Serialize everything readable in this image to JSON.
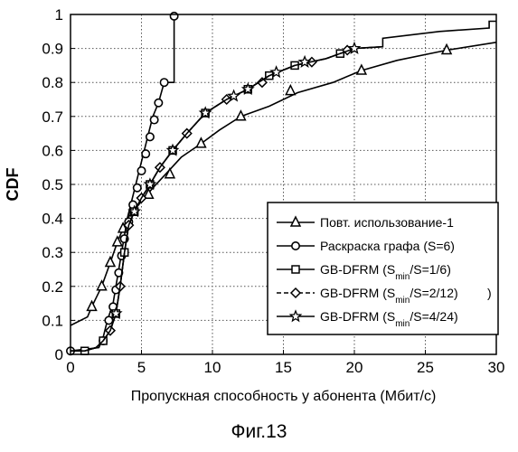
{
  "chart_data": {
    "type": "line",
    "title": "",
    "xlabel": "Пропускная способность у абонента (Мбит/с)",
    "ylabel": "CDF",
    "xlim": [
      0,
      30
    ],
    "ylim": [
      0,
      1
    ],
    "xticks": [
      "0",
      "5",
      "10",
      "15",
      "20",
      "25",
      "30"
    ],
    "yticks": [
      "0",
      "0.1",
      "0.2",
      "0.3",
      "0.4",
      "0.5",
      "0.6",
      "0.7",
      "0.8",
      "0.9",
      "1"
    ],
    "grid": "dotted",
    "legend_position": "bottom-right",
    "series": [
      {
        "name": "Повт. использование-1",
        "style": "solid",
        "marker": "triangle",
        "x": [
          0,
          1.2,
          1.5,
          2.2,
          2.8,
          3.3,
          3.7,
          4.0,
          4.4,
          5.0,
          5.8,
          6.7,
          7.8,
          9.2,
          10.5,
          12.0,
          14.0,
          16.0,
          18.5,
          20.5,
          23.0,
          26.5,
          30.0
        ],
        "y": [
          0.085,
          0.11,
          0.14,
          0.2,
          0.27,
          0.33,
          0.37,
          0.4,
          0.42,
          0.45,
          0.49,
          0.53,
          0.58,
          0.62,
          0.66,
          0.7,
          0.73,
          0.77,
          0.8,
          0.835,
          0.865,
          0.895,
          0.918
        ],
        "markers_x": [
          1.5,
          2.2,
          2.8,
          3.3,
          3.7,
          4.4,
          5.5,
          7.0,
          9.2,
          12.0,
          15.5,
          20.5,
          26.5
        ],
        "markers_y": [
          0.14,
          0.2,
          0.27,
          0.33,
          0.37,
          0.42,
          0.47,
          0.53,
          0.62,
          0.7,
          0.775,
          0.835,
          0.895
        ]
      },
      {
        "name": "Раскраска графа (S=6)",
        "style": "solid",
        "marker": "circle",
        "x": [
          0,
          2.0,
          2.3,
          2.6,
          3.0,
          3.2,
          3.4,
          3.6,
          3.8,
          4.0,
          4.3,
          4.6,
          4.9,
          5.2,
          5.5,
          5.8,
          6.2,
          6.6,
          7.1,
          7.3,
          7.3,
          7.6,
          7.6
        ],
        "y": [
          0.01,
          0.02,
          0.05,
          0.1,
          0.15,
          0.2,
          0.25,
          0.3,
          0.35,
          0.4,
          0.45,
          0.5,
          0.55,
          0.6,
          0.65,
          0.7,
          0.74,
          0.8,
          0.8,
          0.8,
          0.995,
          0.995,
          0.995
        ],
        "markers_x": [
          0,
          2.3,
          2.7,
          3.0,
          3.2,
          3.4,
          3.6,
          3.8,
          4.1,
          4.4,
          4.7,
          5.0,
          5.3,
          5.6,
          5.9,
          6.2,
          6.6,
          7.3
        ],
        "markers_y": [
          0.01,
          0.04,
          0.1,
          0.14,
          0.19,
          0.24,
          0.29,
          0.34,
          0.39,
          0.44,
          0.49,
          0.54,
          0.59,
          0.64,
          0.69,
          0.74,
          0.8,
          0.995
        ]
      },
      {
        "name": "GB-DFRM (S/S=1/6)",
        "style": "solid",
        "marker": "square",
        "x": [
          0,
          1.0,
          1.8,
          2.3,
          2.8,
          3.2,
          3.5,
          3.8,
          4.1,
          4.5,
          5.0,
          5.6,
          6.3,
          7.2,
          8.2,
          9.5,
          11.0,
          12.5,
          14.0,
          15.8,
          18.0,
          20.0,
          22.0,
          22.0,
          26.0,
          29.5,
          29.5,
          30.0
        ],
        "y": [
          0.01,
          0.01,
          0.02,
          0.04,
          0.07,
          0.12,
          0.2,
          0.3,
          0.38,
          0.42,
          0.46,
          0.5,
          0.55,
          0.6,
          0.65,
          0.71,
          0.75,
          0.78,
          0.82,
          0.85,
          0.87,
          0.9,
          0.905,
          0.93,
          0.95,
          0.96,
          0.98,
          0.98
        ],
        "markers_x": [
          1.0,
          2.3,
          3.2,
          3.8,
          4.5,
          5.6,
          7.2,
          9.5,
          12.5,
          14.0,
          15.8,
          19.0
        ],
        "markers_y": [
          0.01,
          0.04,
          0.12,
          0.3,
          0.42,
          0.5,
          0.6,
          0.71,
          0.78,
          0.82,
          0.85,
          0.885
        ]
      },
      {
        "name": "GB-DFRM (S/S=2/12)",
        "style": "dashed",
        "marker": "diamond",
        "x": [
          0,
          1.0,
          1.8,
          2.3,
          2.8,
          3.2,
          3.5,
          3.8,
          4.1,
          4.5,
          5.0,
          5.6,
          6.3,
          7.2,
          8.2,
          9.5,
          11.0,
          12.5,
          14.0,
          15.8,
          18.0,
          20.0,
          22.0
        ],
        "y": [
          0.01,
          0.01,
          0.02,
          0.04,
          0.07,
          0.12,
          0.2,
          0.3,
          0.38,
          0.42,
          0.46,
          0.5,
          0.55,
          0.6,
          0.65,
          0.71,
          0.75,
          0.78,
          0.82,
          0.85,
          0.87,
          0.9,
          0.905
        ],
        "markers_x": [
          2.8,
          3.5,
          4.1,
          5.0,
          6.3,
          8.2,
          11.0,
          13.5,
          17.0,
          19.5
        ],
        "markers_y": [
          0.07,
          0.2,
          0.38,
          0.46,
          0.55,
          0.65,
          0.75,
          0.8,
          0.86,
          0.895
        ]
      },
      {
        "name": "GB-DFRM (S/S=4/24)",
        "style": "solid",
        "marker": "star",
        "x": [
          0,
          1.0,
          1.8,
          2.3,
          2.8,
          3.2,
          3.5,
          3.8,
          4.1,
          4.5,
          5.0,
          5.6,
          6.3,
          7.2,
          8.2,
          9.5,
          11.0,
          12.5,
          14.0,
          15.8,
          18.0,
          20.0
        ],
        "y": [
          0.01,
          0.01,
          0.02,
          0.04,
          0.07,
          0.12,
          0.2,
          0.3,
          0.38,
          0.42,
          0.46,
          0.5,
          0.55,
          0.6,
          0.65,
          0.71,
          0.75,
          0.78,
          0.82,
          0.85,
          0.87,
          0.9
        ],
        "markers_x": [
          3.2,
          4.5,
          5.6,
          7.2,
          9.5,
          11.5,
          12.5,
          14.5,
          16.5,
          20.0
        ],
        "markers_y": [
          0.12,
          0.42,
          0.5,
          0.6,
          0.71,
          0.76,
          0.78,
          0.83,
          0.86,
          0.9
        ]
      }
    ],
    "legend": [
      {
        "pre": "Повт. использование-1",
        "sub": "",
        "post": "",
        "tail": ""
      },
      {
        "pre": "Раскраска графа (S=6)",
        "sub": "",
        "post": "",
        "tail": ""
      },
      {
        "pre": "GB-DFRM (S",
        "sub": "min",
        "post": "/S=1/6)",
        "tail": ""
      },
      {
        "pre": "GB-DFRM (S",
        "sub": "min",
        "post": "/S=2/12)",
        "tail": ")"
      },
      {
        "pre": "GB-DFRM (S",
        "sub": "min",
        "post": "/S=4/24)",
        "tail": ""
      }
    ]
  },
  "caption": "Фиг.13"
}
